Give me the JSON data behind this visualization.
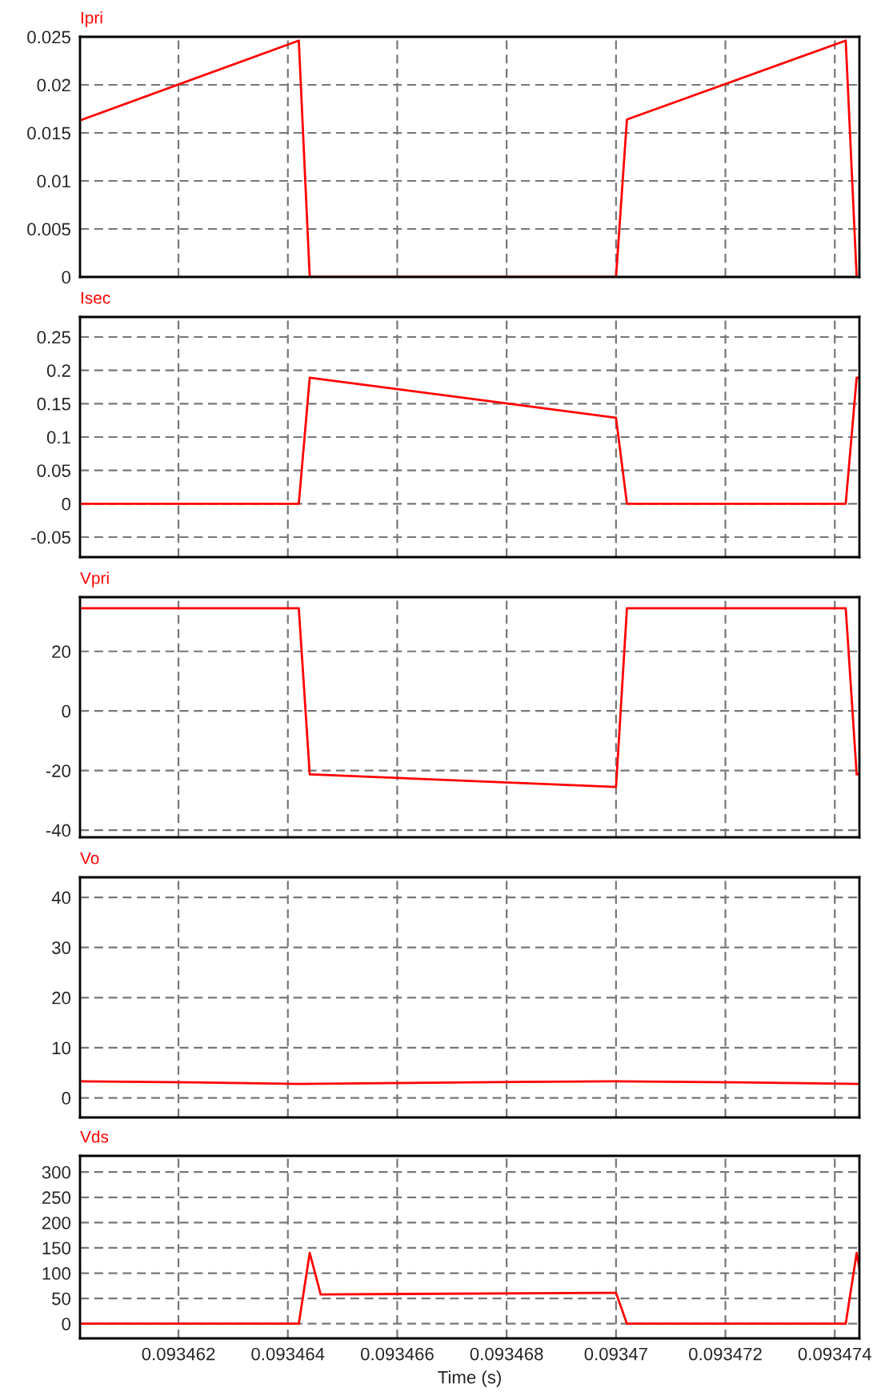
{
  "chart_data": [
    {
      "type": "line",
      "title": "Ipri",
      "xlim": [
        0.0934602,
        0.09347445
      ],
      "xticks": [
        0.093462,
        0.093464,
        0.093466,
        0.093468,
        0.09347,
        0.093472,
        0.093474
      ],
      "ylim": [
        0,
        0.025
      ],
      "yticks": [
        0,
        0.005,
        0.01,
        0.015,
        0.02,
        0.025
      ],
      "grid": true,
      "tick_labels": "y",
      "series": [
        {
          "color": "#ff0000",
          "x": [
            0.0934602,
            0.0934642,
            0.0934644,
            0.09347,
            0.0934702,
            0.0934742,
            0.0934744
          ],
          "values": [
            0.0163,
            0.0246,
            0,
            0,
            0.0164,
            0.0246,
            0
          ]
        }
      ]
    },
    {
      "type": "line",
      "title": "Isec",
      "xlim": [
        0.0934602,
        0.09347445
      ],
      "xticks": [
        0.093462,
        0.093464,
        0.093466,
        0.093468,
        0.09347,
        0.093472,
        0.093474
      ],
      "ylim": [
        -0.08,
        0.28
      ],
      "yticks": [
        -0.05,
        0,
        0.05,
        0.1,
        0.15,
        0.2,
        0.25
      ],
      "grid": true,
      "tick_labels": "y",
      "series": [
        {
          "color": "#ff0000",
          "x": [
            0.0934602,
            0.0934642,
            0.0934644,
            0.09347,
            0.0934702,
            0.0934742,
            0.0934744,
            0.09347445
          ],
          "values": [
            0,
            0,
            0.189,
            0.129,
            0,
            0,
            0.189,
            0.189
          ]
        }
      ]
    },
    {
      "type": "line",
      "title": "Vpri",
      "xlim": [
        0.0934602,
        0.09347445
      ],
      "xticks": [
        0.093462,
        0.093464,
        0.093466,
        0.093468,
        0.09347,
        0.093472,
        0.093474
      ],
      "ylim": [
        -42.4,
        38.2
      ],
      "yticks": [
        -40,
        -20,
        0,
        20
      ],
      "grid": true,
      "tick_labels": "y",
      "series": [
        {
          "color": "#ff0000",
          "x": [
            0.0934602,
            0.0934642,
            0.0934644,
            0.09347,
            0.0934702,
            0.0934742,
            0.0934744,
            0.09347445
          ],
          "values": [
            34.5,
            34.5,
            -21.3,
            -25.5,
            34.5,
            34.5,
            -21.3,
            -21.3
          ]
        }
      ]
    },
    {
      "type": "line",
      "title": "Vo",
      "xlim": [
        0.0934602,
        0.09347445
      ],
      "xticks": [
        0.093462,
        0.093464,
        0.093466,
        0.093468,
        0.09347,
        0.093472,
        0.093474
      ],
      "ylim": [
        -3.9,
        44
      ],
      "yticks": [
        0,
        10,
        20,
        30,
        40
      ],
      "grid": true,
      "tick_labels": "y",
      "series": [
        {
          "color": "#ff0000",
          "x": [
            0.0934602,
            0.0934622,
            0.0934642,
            0.0934662,
            0.0934682,
            0.09347,
            0.0934722,
            0.09347445
          ],
          "values": [
            3.3,
            3.1,
            2.8,
            3.0,
            3.2,
            3.3,
            3.1,
            2.8
          ]
        }
      ]
    },
    {
      "type": "line",
      "title": "Vds",
      "xlabel": "Time (s)",
      "xlim": [
        0.0934602,
        0.09347445
      ],
      "xticks": [
        0.093462,
        0.093464,
        0.093466,
        0.093468,
        0.09347,
        0.093472,
        0.093474
      ],
      "ylim": [
        -29,
        332
      ],
      "yticks": [
        0,
        50,
        100,
        150,
        200,
        250,
        300
      ],
      "grid": true,
      "series": [
        {
          "color": "#ff0000",
          "x": [
            0.0934602,
            0.0934642,
            0.0934644,
            0.0934646,
            0.09347,
            0.0934702,
            0.0934742,
            0.0934744,
            0.09347445
          ],
          "values": [
            0,
            0,
            140,
            58,
            61,
            0,
            0,
            140,
            110
          ]
        }
      ]
    }
  ]
}
